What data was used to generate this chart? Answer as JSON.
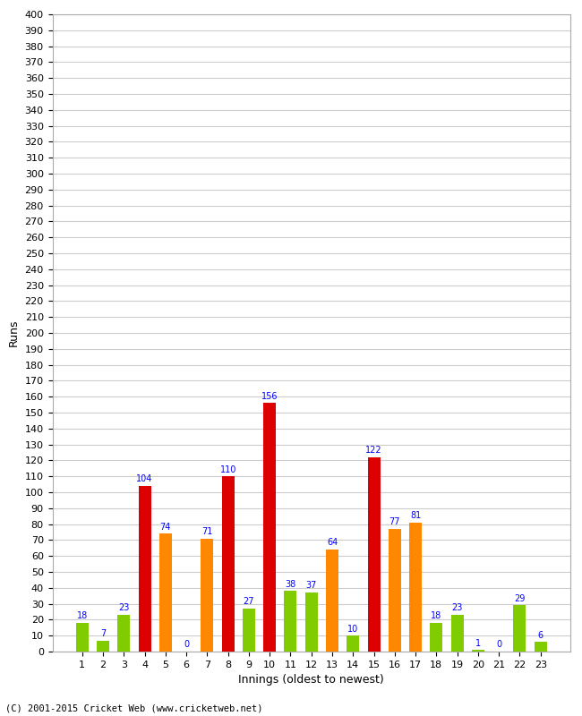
{
  "innings": [
    1,
    2,
    3,
    4,
    5,
    6,
    7,
    8,
    9,
    10,
    11,
    12,
    13,
    14,
    15,
    16,
    17,
    18,
    19,
    20,
    21,
    22,
    23
  ],
  "values": [
    18,
    7,
    23,
    104,
    74,
    0,
    71,
    110,
    27,
    156,
    38,
    37,
    64,
    10,
    122,
    77,
    81,
    18,
    23,
    1,
    0,
    29,
    6
  ],
  "colors": [
    "#80cc00",
    "#80cc00",
    "#80cc00",
    "#dd0000",
    "#ff8800",
    "#80cc00",
    "#ff8800",
    "#dd0000",
    "#80cc00",
    "#dd0000",
    "#80cc00",
    "#80cc00",
    "#ff8800",
    "#80cc00",
    "#dd0000",
    "#ff8800",
    "#ff8800",
    "#80cc00",
    "#80cc00",
    "#80cc00",
    "#80cc00",
    "#80cc00",
    "#80cc00"
  ],
  "title": "",
  "xlabel": "Innings (oldest to newest)",
  "ylabel": "Runs",
  "ylim": [
    0,
    400
  ],
  "ytick_step": 10,
  "background_color": "#ffffff",
  "grid_color": "#cccccc",
  "footer": "(C) 2001-2015 Cricket Web (www.cricketweb.net)"
}
